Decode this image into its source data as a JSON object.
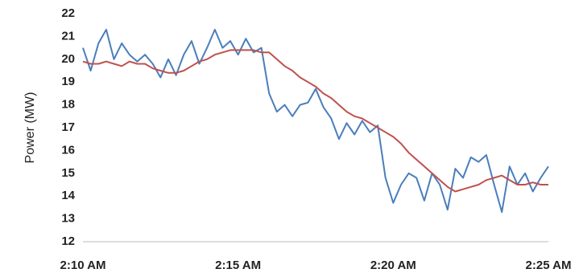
{
  "chart_data": {
    "type": "line",
    "y_label": "Power (MW)",
    "categories": [
      "2:10 AM",
      null,
      null,
      null,
      null,
      null,
      null,
      null,
      null,
      null,
      null,
      null,
      null,
      null,
      null,
      null,
      null,
      null,
      null,
      null,
      "2:15 AM",
      null,
      null,
      null,
      null,
      null,
      null,
      null,
      null,
      null,
      null,
      null,
      null,
      null,
      null,
      null,
      null,
      null,
      null,
      null,
      "2:20 AM",
      null,
      null,
      null,
      null,
      null,
      null,
      null,
      null,
      null,
      null,
      null,
      null,
      null,
      null,
      null,
      null,
      null,
      null,
      null,
      "2:25 AM"
    ],
    "series": [
      {
        "color": "#4a7ebb",
        "values": [
          20.5,
          19.5,
          20.7,
          21.3,
          20.0,
          20.7,
          20.2,
          19.9,
          20.2,
          19.8,
          19.2,
          20.0,
          19.3,
          20.2,
          20.8,
          19.8,
          20.5,
          21.3,
          20.5,
          20.8,
          20.2,
          20.9,
          20.3,
          20.5,
          18.5,
          17.7,
          18.0,
          17.5,
          18.0,
          18.1,
          18.7,
          17.9,
          17.4,
          16.5,
          17.2,
          16.7,
          17.3,
          16.8,
          17.1,
          14.8,
          13.7,
          14.5,
          15.0,
          14.8,
          13.8,
          15.0,
          14.5,
          13.4,
          15.2,
          14.8,
          15.7,
          15.5,
          15.8,
          14.5,
          13.3,
          15.3,
          14.5,
          15.0,
          14.2,
          14.8,
          15.3
        ]
      },
      {
        "color": "#c0504d",
        "values": [
          19.9,
          19.8,
          19.8,
          19.9,
          19.8,
          19.7,
          19.9,
          19.8,
          19.8,
          19.6,
          19.5,
          19.4,
          19.4,
          19.5,
          19.7,
          19.9,
          20.0,
          20.2,
          20.3,
          20.4,
          20.4,
          20.4,
          20.4,
          20.3,
          20.3,
          20.0,
          19.7,
          19.5,
          19.2,
          19.0,
          18.8,
          18.5,
          18.3,
          18.0,
          17.7,
          17.5,
          17.4,
          17.2,
          17.0,
          16.8,
          16.6,
          16.3,
          15.9,
          15.6,
          15.3,
          15.0,
          14.7,
          14.4,
          14.2,
          14.3,
          14.4,
          14.5,
          14.7,
          14.8,
          14.9,
          14.7,
          14.5,
          14.5,
          14.6,
          14.5,
          14.5
        ]
      }
    ],
    "ylim": [
      12,
      22
    ],
    "yticks": [
      12,
      13,
      14,
      15,
      16,
      17,
      18,
      19,
      20,
      21,
      22
    ]
  }
}
